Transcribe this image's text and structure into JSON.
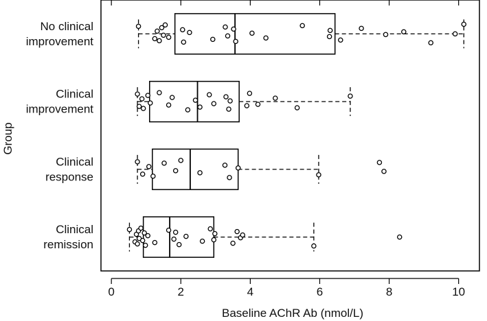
{
  "chart_data": {
    "type": "boxplot",
    "orientation": "horizontal",
    "xlabel": "Baseline AChR Ab (nmol/L)",
    "ylabel": "Group",
    "xlim": [
      -0.3,
      10.6
    ],
    "xticks": [
      0,
      2,
      4,
      6,
      8,
      10
    ],
    "grid": false,
    "groups": [
      {
        "label_lines": [
          "No clinical",
          "improvement"
        ],
        "whisker_low": 0.78,
        "q1": 1.83,
        "median": 3.56,
        "q3": 6.44,
        "whisker_high": 10.15,
        "points": [
          0.78,
          1.25,
          1.32,
          1.38,
          1.45,
          1.5,
          1.55,
          1.65,
          2.05,
          2.08,
          2.25,
          2.92,
          3.28,
          3.35,
          3.52,
          3.58,
          4.05,
          4.45,
          5.5,
          6.28,
          6.3,
          6.6,
          7.2,
          7.9,
          8.42,
          9.2,
          9.9,
          10.15
        ]
      },
      {
        "label_lines": [
          "Clinical",
          "improvement"
        ],
        "whisker_low": 0.75,
        "q1": 1.1,
        "median": 2.48,
        "q3": 3.68,
        "whisker_high": 6.88,
        "points": [
          0.75,
          0.8,
          0.88,
          0.92,
          1.05,
          1.12,
          1.38,
          1.65,
          1.75,
          2.2,
          2.42,
          2.55,
          2.82,
          2.95,
          3.3,
          3.38,
          3.42,
          3.9,
          3.98,
          4.22,
          4.72,
          5.35,
          6.88
        ]
      },
      {
        "label_lines": [
          "Clinical",
          "response"
        ],
        "whisker_low": 0.75,
        "q1": 1.18,
        "median": 2.27,
        "q3": 3.65,
        "whisker_high": 5.97,
        "points": [
          0.75,
          0.9,
          1.08,
          1.2,
          1.52,
          1.85,
          2.0,
          2.55,
          3.27,
          3.4,
          3.65,
          5.97,
          7.72,
          7.85
        ]
      },
      {
        "label_lines": [
          "Clinical",
          "remission"
        ],
        "whisker_low": 0.52,
        "q1": 0.92,
        "median": 1.68,
        "q3": 2.95,
        "whisker_high": 5.83,
        "points": [
          0.52,
          0.68,
          0.72,
          0.75,
          0.78,
          0.8,
          0.85,
          0.9,
          0.95,
          0.98,
          1.05,
          1.25,
          1.65,
          1.8,
          1.85,
          1.95,
          2.15,
          2.62,
          2.85,
          2.95,
          2.98,
          3.5,
          3.62,
          3.72,
          3.78,
          5.83,
          8.3
        ]
      }
    ]
  }
}
